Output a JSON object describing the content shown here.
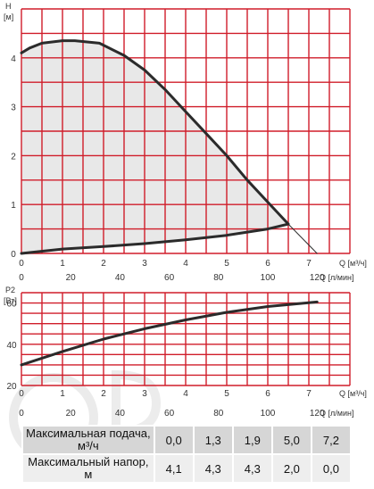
{
  "chart_data": [
    {
      "type": "line",
      "xlabel": "Q [м³/ч]",
      "xlabel_secondary": "Q [л/мин]",
      "ylabel": "H\n[м]",
      "xlim": [
        0,
        8
      ],
      "ylim": [
        0,
        5
      ],
      "x_ticks": [
        "0",
        "1",
        "2",
        "3",
        "4",
        "5",
        "6",
        "7"
      ],
      "x_ticks_secondary": [
        "0",
        "20",
        "40",
        "60",
        "80",
        "100",
        "120"
      ],
      "y_ticks": [
        "0",
        "1",
        "2",
        "3",
        "4"
      ],
      "grid": true,
      "series": [
        {
          "role": "head-curve",
          "x": [
            0,
            0.2,
            0.5,
            1.0,
            1.3,
            1.9,
            2.5,
            3.0,
            3.5,
            4.0,
            4.5,
            5.0,
            5.5,
            6.0,
            6.5
          ],
          "y": [
            4.1,
            4.2,
            4.3,
            4.35,
            4.35,
            4.3,
            4.05,
            3.75,
            3.35,
            2.9,
            2.45,
            2.0,
            1.5,
            1.05,
            0.6
          ]
        },
        {
          "role": "min-curve",
          "x": [
            0,
            1,
            2,
            3,
            4,
            5,
            6,
            6.5
          ],
          "y": [
            0,
            0.09,
            0.14,
            0.2,
            0.28,
            0.37,
            0.5,
            0.6
          ]
        },
        {
          "role": "extension",
          "x": [
            6.5,
            7.2
          ],
          "y": [
            0.6,
            0.0
          ]
        }
      ],
      "fill_region": "between head-curve and min-curve",
      "colors": {
        "grid": "#d01d2a",
        "curve": "#2b2b2b",
        "fill": "#e8e8e8"
      }
    },
    {
      "type": "line",
      "xlabel": "Q [м³/ч]",
      "xlabel_secondary": "Q [л/мин]",
      "ylabel": "P2\n[Вт]",
      "xlim": [
        0,
        8
      ],
      "ylim": [
        20,
        65
      ],
      "x_ticks": [
        "0",
        "1",
        "2",
        "3",
        "4",
        "5",
        "6",
        "7"
      ],
      "x_ticks_secondary": [
        "0",
        "20",
        "40",
        "60",
        "80",
        "100",
        "120"
      ],
      "y_ticks": [
        "20",
        "40",
        "60"
      ],
      "grid": true,
      "series": [
        {
          "role": "power-curve",
          "x": [
            0,
            1,
            2,
            3,
            4,
            5,
            6,
            7.2
          ],
          "y": [
            30,
            36.5,
            42.5,
            47.5,
            51.8,
            55.5,
            58.3,
            60.5
          ]
        }
      ],
      "colors": {
        "grid": "#d01d2a",
        "curve": "#2b2b2b"
      }
    }
  ],
  "table": {
    "row1_header": "Максимальная подача, м³/ч",
    "row1_values": [
      "0,0",
      "1,3",
      "1,9",
      "5,0",
      "7,2"
    ],
    "row2_header": "Максимальный напор, м",
    "row2_values": [
      "4,1",
      "4,3",
      "4,3",
      "2,0",
      "0,0"
    ]
  }
}
